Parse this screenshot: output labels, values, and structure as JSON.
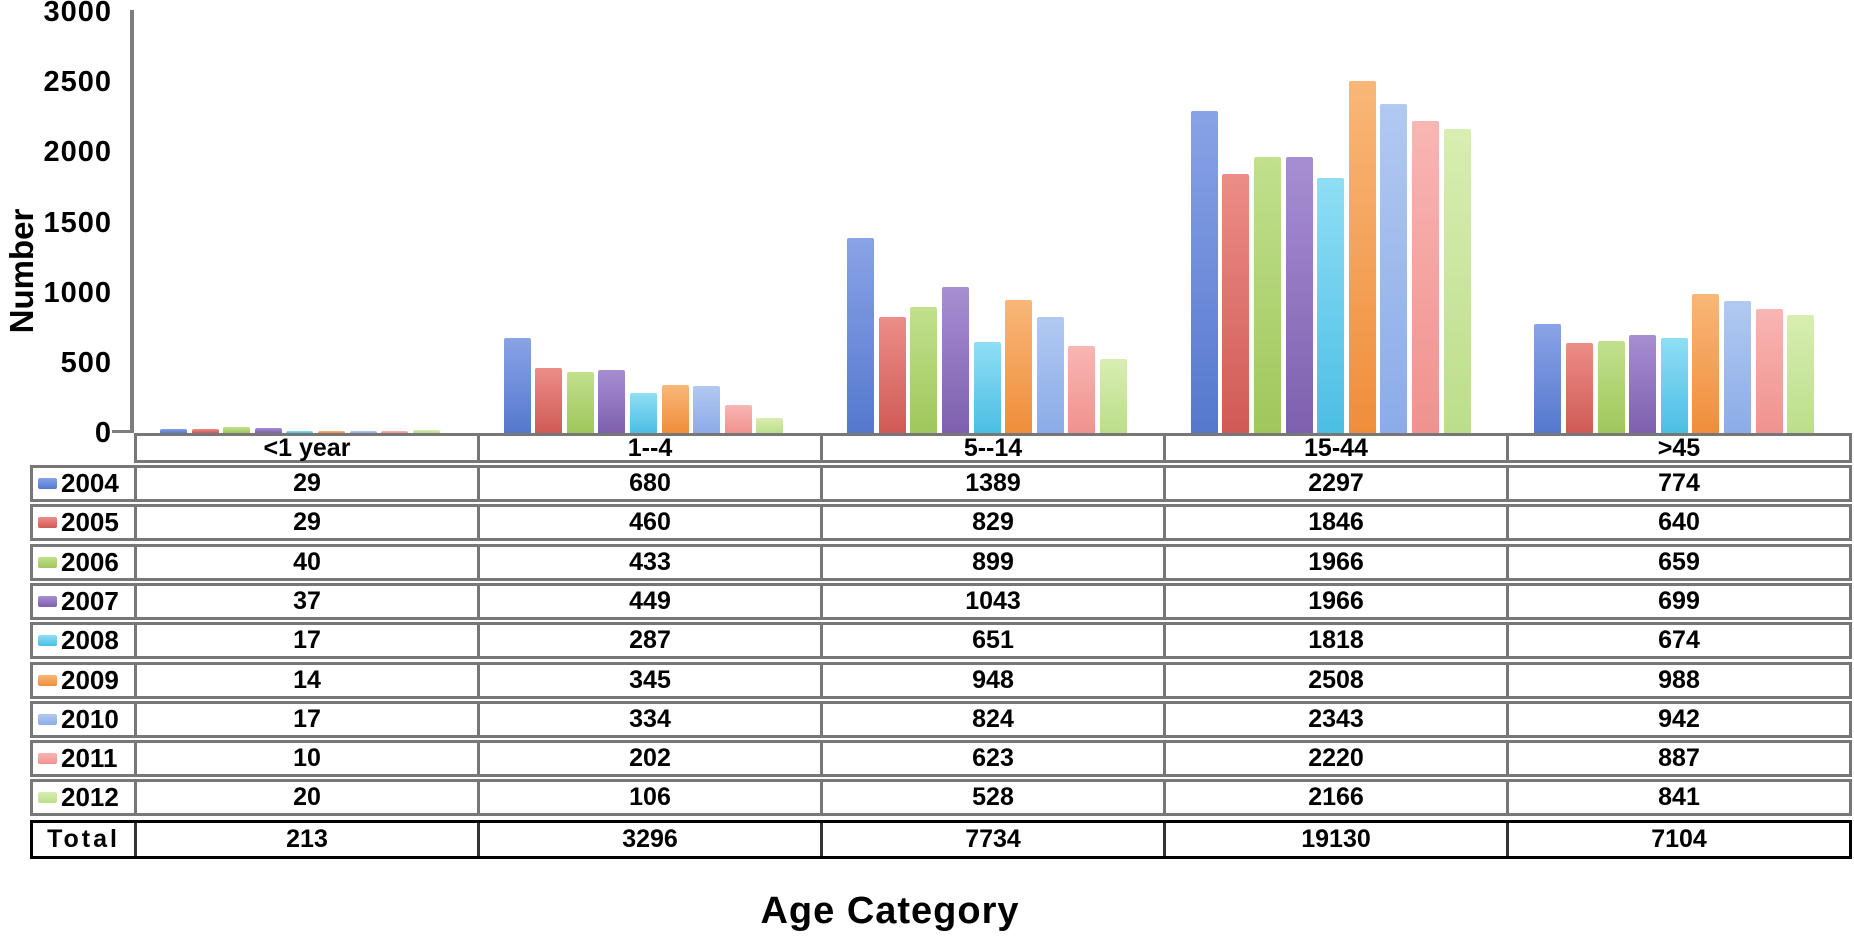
{
  "chart_data": {
    "type": "bar",
    "title": "",
    "xlabel": "Age Category",
    "ylabel": "Number",
    "ylim": [
      0,
      3000
    ],
    "ytick_step": 500,
    "yticks": [
      "0",
      "500",
      "1000",
      "1500",
      "2000",
      "2500",
      "3000"
    ],
    "grid": false,
    "legend_position": "table-rows-left",
    "categories": [
      "<1 year",
      "1--4",
      "5--14",
      "15-44",
      ">45"
    ],
    "series": [
      {
        "name": "2004",
        "color": "#5578CE",
        "color_light": "#89A3E6",
        "values": [
          29,
          680,
          1389,
          2297,
          774
        ]
      },
      {
        "name": "2005",
        "color": "#D05A55",
        "color_light": "#EC8D87",
        "values": [
          29,
          460,
          829,
          1846,
          640
        ]
      },
      {
        "name": "2006",
        "color": "#9FC75C",
        "color_light": "#C2E08D",
        "values": [
          40,
          433,
          899,
          1966,
          659
        ]
      },
      {
        "name": "2007",
        "color": "#7E60AE",
        "color_light": "#A78ED2",
        "values": [
          37,
          449,
          1043,
          1966,
          699
        ]
      },
      {
        "name": "2008",
        "color": "#4CBEE4",
        "color_light": "#8FDEF5",
        "values": [
          17,
          287,
          651,
          1818,
          674
        ]
      },
      {
        "name": "2009",
        "color": "#F08E3B",
        "color_light": "#F8B778",
        "values": [
          14,
          345,
          948,
          2508,
          988
        ]
      },
      {
        "name": "2010",
        "color": "#8BACE8",
        "color_light": "#B2C9F2",
        "values": [
          17,
          334,
          824,
          2343,
          942
        ]
      },
      {
        "name": "2011",
        "color": "#F0928F",
        "color_light": "#F8B6B3",
        "values": [
          10,
          202,
          623,
          2220,
          887
        ]
      },
      {
        "name": "2012",
        "color": "#BCDE8B",
        "color_light": "#D8EEB1",
        "values": [
          20,
          106,
          528,
          2166,
          841
        ]
      }
    ],
    "total_row": {
      "label": "Total",
      "values": [
        "213",
        "3296",
        "7734",
        "19130",
        "7104"
      ]
    }
  },
  "colors": {
    "axis_line": "#7d7d7d",
    "table_border": "#777777",
    "total_border": "#000000",
    "text": "#000000",
    "background": "#ffffff"
  }
}
